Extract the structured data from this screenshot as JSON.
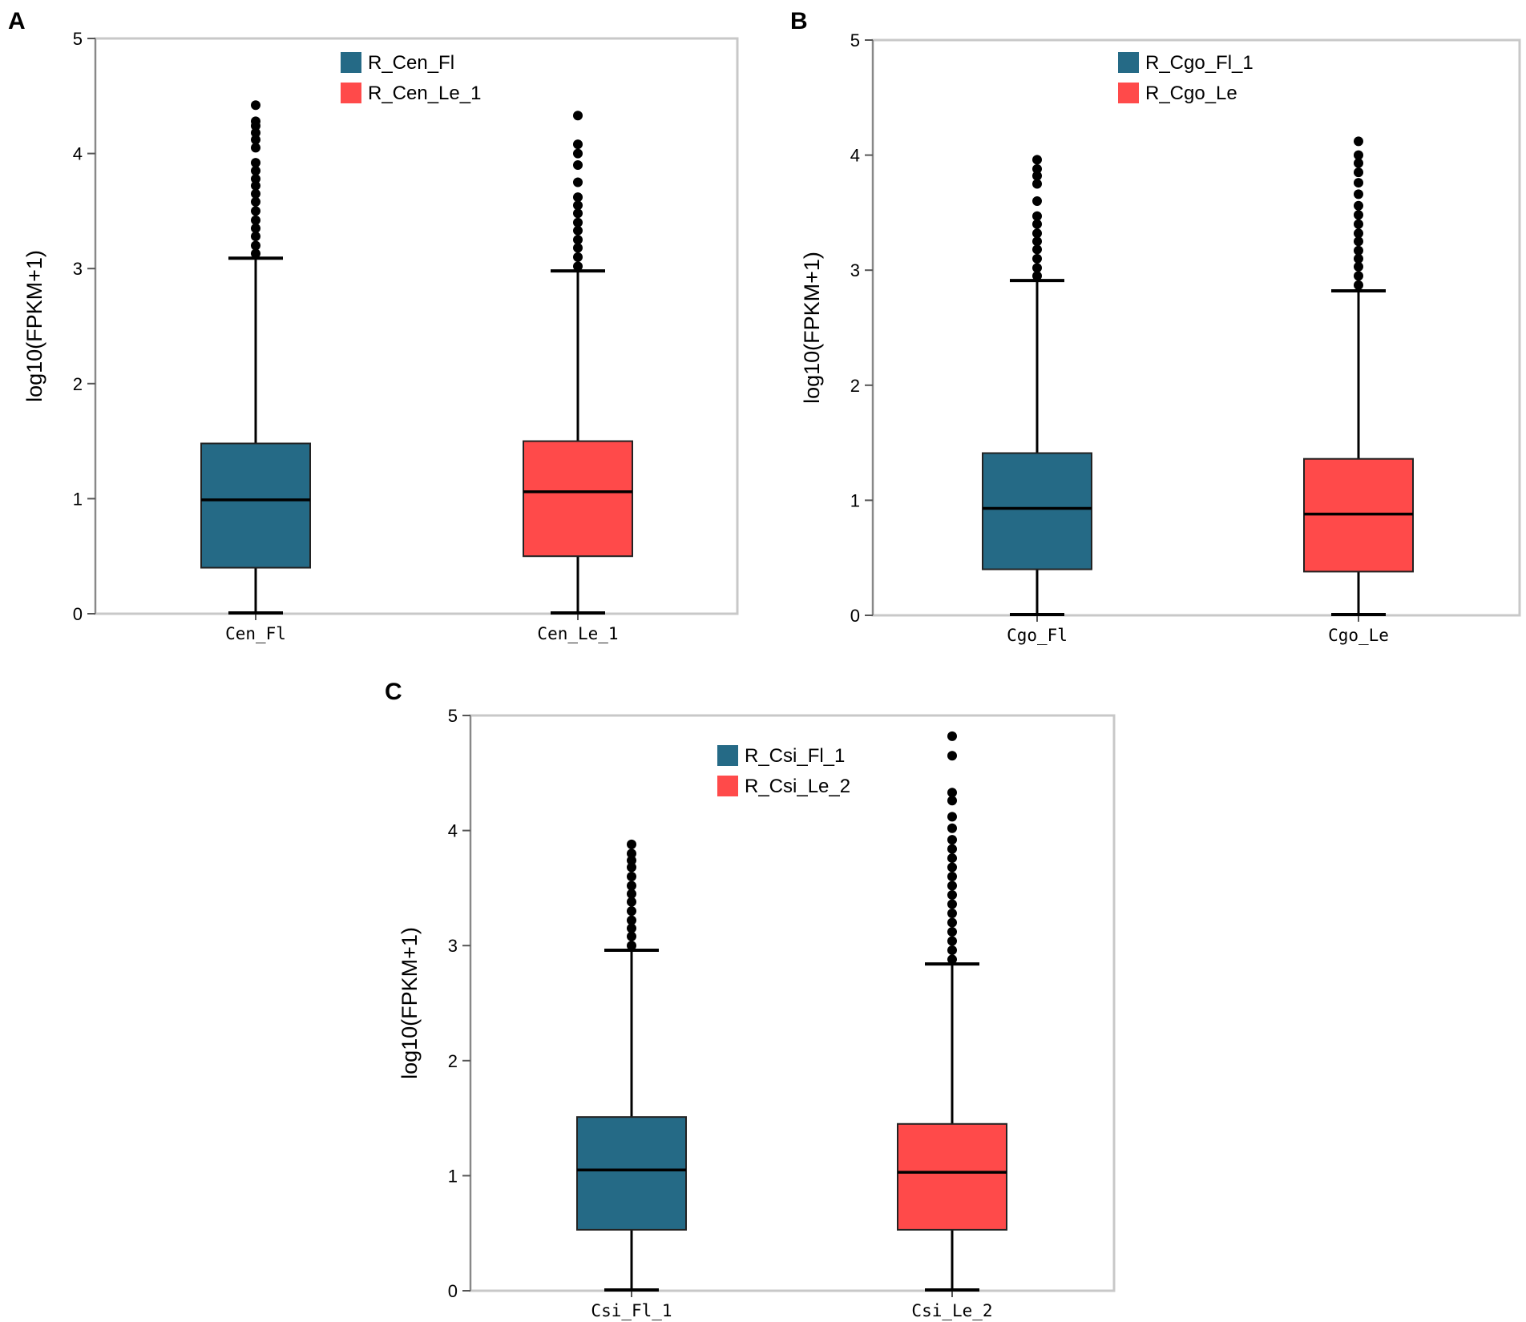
{
  "colors": {
    "fl": "#256a86",
    "le": "#ff4a4a",
    "frame": "#c8c8c8",
    "ink": "#000000"
  },
  "chart_data": [
    {
      "panel": "A",
      "type": "box",
      "ylabel": "log10(FPKM+1)",
      "ylim": [
        0,
        5
      ],
      "yticks": [
        "0",
        "1",
        "2",
        "3",
        "4",
        "5"
      ],
      "categories": [
        "Cen_Fl",
        "Cen_Le_1"
      ],
      "legend": [
        "R_Cen_Fl",
        "R_Cen_Le_1"
      ],
      "series": [
        {
          "name": "R_Cen_Fl",
          "min": 0.0,
          "q1": 0.4,
          "median": 0.99,
          "q3": 1.48,
          "max": 3.09,
          "outliers": [
            3.13,
            3.2,
            3.28,
            3.35,
            3.42,
            3.5,
            3.58,
            3.65,
            3.72,
            3.78,
            3.85,
            3.92,
            4.05,
            4.12,
            4.18,
            4.24,
            4.28,
            4.42
          ]
        },
        {
          "name": "R_Cen_Le_1",
          "min": 0.0,
          "q1": 0.5,
          "median": 1.06,
          "q3": 1.5,
          "max": 2.98,
          "outliers": [
            3.02,
            3.1,
            3.18,
            3.25,
            3.33,
            3.4,
            3.48,
            3.55,
            3.62,
            3.75,
            3.9,
            4.0,
            4.08,
            4.33
          ]
        }
      ]
    },
    {
      "panel": "B",
      "type": "box",
      "ylabel": "log10(FPKM+1)",
      "ylim": [
        0,
        5
      ],
      "yticks": [
        "0",
        "1",
        "2",
        "3",
        "4",
        "5"
      ],
      "categories": [
        "Cgo_Fl",
        "Cgo_Le"
      ],
      "legend": [
        "R_Cgo_Fl_1",
        "R_Cgo_Le"
      ],
      "series": [
        {
          "name": "R_Cgo_Fl_1",
          "min": 0.0,
          "q1": 0.4,
          "median": 0.93,
          "q3": 1.41,
          "max": 2.91,
          "outliers": [
            2.95,
            3.02,
            3.1,
            3.18,
            3.25,
            3.32,
            3.4,
            3.47,
            3.6,
            3.75,
            3.82,
            3.88,
            3.96
          ]
        },
        {
          "name": "R_Cgo_Le",
          "min": 0.0,
          "q1": 0.38,
          "median": 0.88,
          "q3": 1.36,
          "max": 2.82,
          "outliers": [
            2.87,
            2.95,
            3.03,
            3.1,
            3.17,
            3.25,
            3.32,
            3.4,
            3.48,
            3.56,
            3.66,
            3.76,
            3.85,
            3.93,
            4.0,
            4.12
          ]
        }
      ]
    },
    {
      "panel": "C",
      "type": "box",
      "ylabel": "log10(FPKM+1)",
      "ylim": [
        0,
        5
      ],
      "yticks": [
        "0",
        "1",
        "2",
        "3",
        "4",
        "5"
      ],
      "categories": [
        "Csi_Fl_1",
        "Csi_Le_2"
      ],
      "legend": [
        "R_Csi_Fl_1",
        "R_Csi_Le_2"
      ],
      "series": [
        {
          "name": "R_Csi_Fl_1",
          "min": 0.0,
          "q1": 0.53,
          "median": 1.05,
          "q3": 1.51,
          "max": 2.96,
          "outliers": [
            3.0,
            3.08,
            3.15,
            3.22,
            3.3,
            3.38,
            3.45,
            3.52,
            3.6,
            3.68,
            3.74,
            3.8,
            3.88
          ]
        },
        {
          "name": "R_Csi_Le_2",
          "min": 0.0,
          "q1": 0.53,
          "median": 1.03,
          "q3": 1.45,
          "max": 2.84,
          "outliers": [
            2.88,
            2.96,
            3.04,
            3.12,
            3.2,
            3.28,
            3.36,
            3.44,
            3.52,
            3.6,
            3.68,
            3.76,
            3.84,
            3.92,
            4.02,
            4.12,
            4.26,
            4.33,
            4.65,
            4.82
          ]
        }
      ]
    }
  ]
}
